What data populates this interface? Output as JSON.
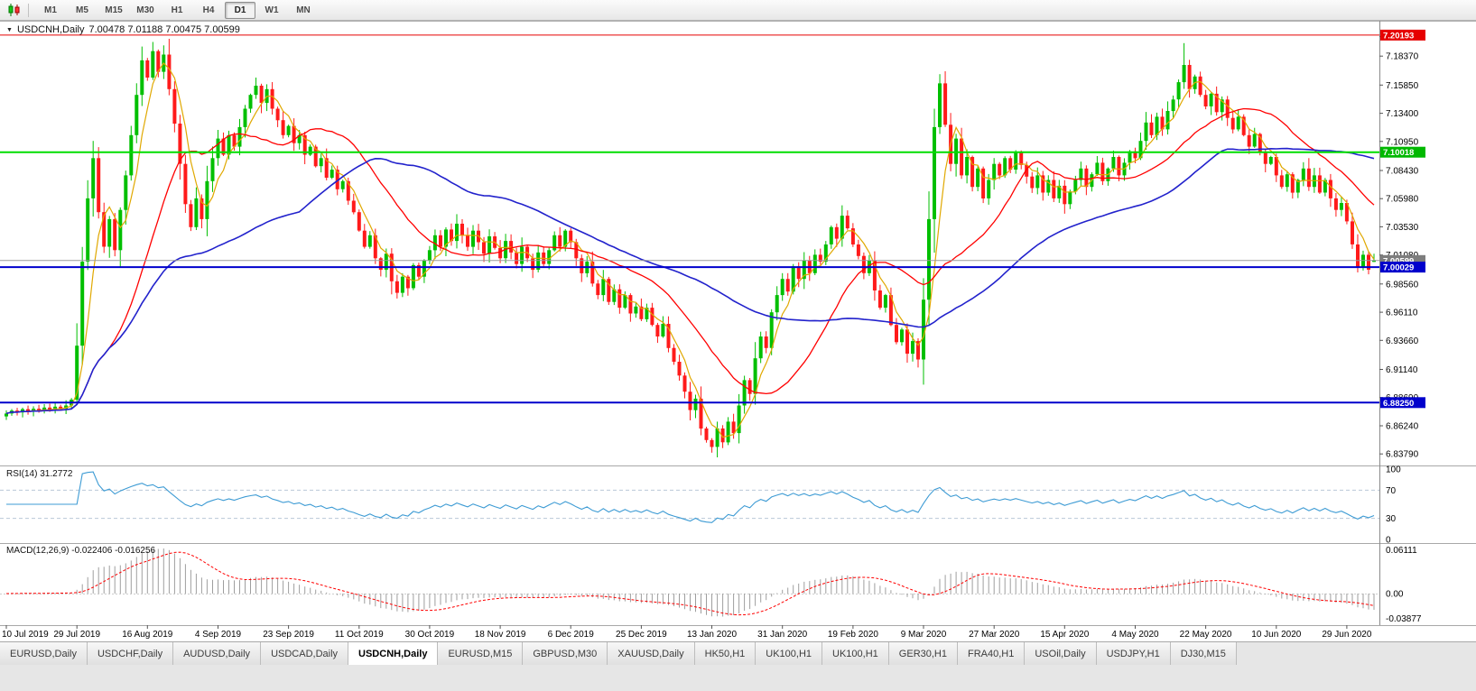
{
  "toolbar": {
    "timeframes": [
      "M1",
      "M5",
      "M15",
      "M30",
      "H1",
      "H4",
      "D1",
      "W1",
      "MN"
    ],
    "active_index": 6
  },
  "chart": {
    "title": "USDCNH,Daily",
    "quote": "7.00478 7.01188 7.00475 7.00599"
  },
  "chart_data": {
    "type": "candlestick",
    "symbol": "USDCNH",
    "period": "Daily",
    "title": "USDCNH,Daily 7.00478 7.01188 7.00475 7.00599",
    "last_quote": {
      "open": 7.00478,
      "high": 7.01188,
      "low": 7.00475,
      "close": 7.00599
    },
    "y_axis_ticks": [
      "7.20080",
      "7.18370",
      "7.15850",
      "7.13400",
      "7.10950",
      "7.08430",
      "7.05980",
      "7.03530",
      "7.01080",
      "6.98560",
      "6.96110",
      "6.93660",
      "6.91140",
      "6.88690",
      "6.86240",
      "6.83790"
    ],
    "x_axis": {
      "step": 13,
      "labels": [
        "10 Jul 2019",
        "29 Jul 2019",
        "16 Aug 2019",
        "4 Sep 2019",
        "23 Sep 2019",
        "11 Oct 2019",
        "30 Oct 2019",
        "18 Nov 2019",
        "6 Dec 2019",
        "25 Dec 2019",
        "13 Jan 2020",
        "31 Jan 2020",
        "19 Feb 2020",
        "9 Mar 2020",
        "27 Mar 2020",
        "15 Apr 2020",
        "4 May 2020",
        "22 May 2020",
        "10 Jun 2020",
        "29 Jun 2020"
      ]
    },
    "price_lines": [
      {
        "name": "alltime-high-line",
        "price": 7.20193,
        "label": "7.20193",
        "color": "#e60000",
        "tag": "#e60000",
        "width": 1
      },
      {
        "name": "resistance-line-7-10",
        "price": 7.10018,
        "label": "7.10018",
        "color": "#00dd00",
        "tag": "#00b800",
        "width": 2
      },
      {
        "name": "current-price-line",
        "price": 7.00599,
        "label": "7.00599",
        "color": "#9a9a9a",
        "tag": "#7d7d7d",
        "width": 1
      },
      {
        "name": "support-line-7-00",
        "price": 7.00029,
        "label": "7.00029",
        "color": "#0000cc",
        "tag": "#0000cc",
        "width": 2
      },
      {
        "name": "support-line-6-88",
        "price": 6.8825,
        "label": "6.88250",
        "color": "#0000cc",
        "tag": "#0000cc",
        "width": 2
      }
    ],
    "candles": {
      "up_color": "#00bf00",
      "down_color": "#ff1a1a",
      "closes": [
        6.873,
        6.8755,
        6.874,
        6.8768,
        6.8745,
        6.8772,
        6.875,
        6.8782,
        6.876,
        6.879,
        6.8772,
        6.88,
        6.885,
        6.932,
        7.005,
        7.06,
        7.095,
        7.048,
        7.018,
        7.042,
        7.015,
        7.05,
        7.08,
        7.115,
        7.15,
        7.18,
        7.165,
        7.188,
        7.17,
        7.185,
        7.155,
        7.125,
        7.09,
        7.055,
        7.035,
        7.06,
        7.042,
        7.075,
        7.095,
        7.112,
        7.098,
        7.115,
        7.105,
        7.122,
        7.138,
        7.15,
        7.158,
        7.143,
        7.155,
        7.138,
        7.128,
        7.115,
        7.123,
        7.108,
        7.115,
        7.098,
        7.105,
        7.088,
        7.095,
        7.078,
        7.085,
        7.068,
        7.075,
        7.058,
        7.048,
        7.032,
        7.018,
        7.028,
        7.008,
        6.998,
        7.012,
        6.988,
        6.978,
        6.992,
        6.982,
        7.002,
        6.992,
        7.006,
        7.015,
        7.028,
        7.018,
        7.033,
        7.023,
        7.038,
        7.028,
        7.018,
        7.032,
        7.022,
        7.012,
        7.027,
        7.017,
        7.008,
        7.023,
        7.013,
        7.003,
        7.018,
        7.008,
        6.998,
        7.013,
        7.003,
        7.015,
        7.028,
        7.018,
        7.032,
        7.022,
        7.008,
        6.995,
        7.005,
        6.986,
        6.976,
        6.99,
        6.97,
        6.981,
        6.965,
        6.976,
        6.96,
        6.966,
        6.955,
        6.965,
        6.95,
        6.94,
        6.951,
        6.93,
        6.918,
        6.906,
        6.892,
        6.876,
        6.886,
        6.86,
        6.85,
        6.844,
        6.86,
        6.848,
        6.866,
        6.856,
        6.88,
        6.902,
        6.89,
        6.921,
        6.94,
        6.93,
        6.961,
        6.976,
        6.99,
        6.979,
        7.001,
        6.99,
        7.006,
        6.995,
        7.011,
        7.005,
        7.02,
        7.035,
        7.025,
        7.045,
        7.034,
        7.02,
        7.01,
        6.995,
        7.006,
        6.98,
        6.965,
        6.976,
        6.95,
        6.935,
        6.946,
        6.925,
        6.936,
        6.92,
        6.972,
        7.042,
        7.122,
        7.16,
        7.124,
        7.09,
        7.112,
        7.08,
        7.096,
        7.07,
        7.086,
        7.06,
        7.076,
        7.09,
        7.08,
        7.095,
        7.085,
        7.1,
        7.089,
        7.079,
        7.069,
        7.08,
        7.065,
        7.076,
        7.06,
        7.071,
        7.055,
        7.066,
        7.076,
        7.086,
        7.07,
        7.081,
        7.091,
        7.075,
        7.086,
        7.096,
        7.08,
        7.091,
        7.101,
        7.095,
        7.11,
        7.126,
        7.115,
        7.131,
        7.12,
        7.136,
        7.146,
        7.161,
        7.176,
        7.155,
        7.166,
        7.15,
        7.14,
        7.151,
        7.135,
        7.146,
        7.13,
        7.12,
        7.131,
        7.115,
        7.105,
        7.116,
        7.1,
        7.09,
        7.096,
        7.08,
        7.07,
        7.081,
        7.065,
        7.076,
        7.086,
        7.07,
        7.08,
        7.065,
        7.076,
        7.06,
        7.05,
        7.056,
        7.04,
        7.02,
        7.0,
        7.011,
        6.998,
        7.006
      ],
      "high_overrides": {
        "16": 7.11,
        "25": 7.192,
        "27": 7.196,
        "29": 7.193,
        "46": 7.165,
        "171": 7.138,
        "172": 7.168,
        "217": 7.195
      },
      "low_overrides": {
        "130": 6.839,
        "132": 6.843,
        "168": 6.913,
        "251": 6.994
      }
    },
    "moving_averages": [
      {
        "period": 5,
        "color": "#e0a800",
        "width": 1.2
      },
      {
        "period": 20,
        "color": "#ff0000",
        "width": 1.3
      },
      {
        "period": 55,
        "color": "#2222cc",
        "width": 1.6
      }
    ],
    "indicators": {
      "rsi": {
        "label": "RSI(14) 31.2772",
        "period": 14,
        "value": 31.2772,
        "levels": [
          70,
          30
        ],
        "axis_labels": [
          "100",
          "70",
          "30",
          "0"
        ],
        "color": "#3d9bd4"
      },
      "macd": {
        "label": "MACD(12,26,9) -0.022406 -0.016256",
        "fast": 12,
        "slow": 26,
        "signal_period": 9,
        "value": -0.022406,
        "signal_value": -0.016256,
        "axis_labels": [
          "0.06111",
          "0.00",
          "-0.03877"
        ],
        "histogram_color": "#9e9e9e",
        "signal_color": "#ff0000"
      }
    }
  },
  "tabs": {
    "active_index": 4,
    "items": [
      "EURUSD,Daily",
      "USDCHF,Daily",
      "AUDUSD,Daily",
      "USDCAD,Daily",
      "USDCNH,Daily",
      "EURUSD,M15",
      "GBPUSD,M30",
      "XAUUSD,Daily",
      "HK50,H1",
      "UK100,H1",
      "UK100,H1",
      "GER30,H1",
      "FRA40,H1",
      "USOil,Daily",
      "USDJPY,H1",
      "DJ30,M15"
    ]
  }
}
